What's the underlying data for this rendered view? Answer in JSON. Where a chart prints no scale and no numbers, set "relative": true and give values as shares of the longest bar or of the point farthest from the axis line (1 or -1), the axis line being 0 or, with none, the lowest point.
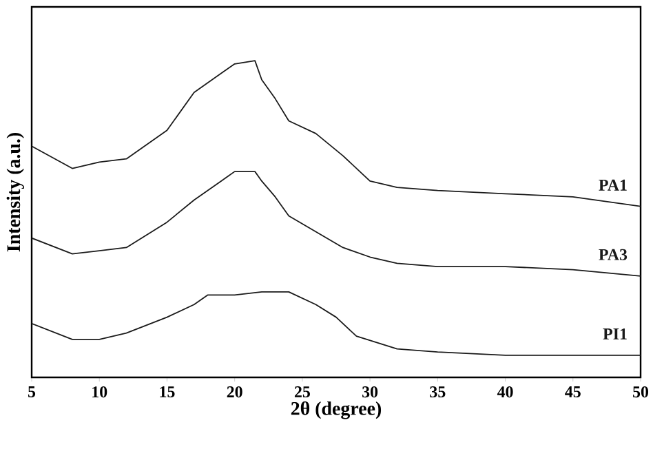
{
  "chart_data": {
    "type": "line",
    "xlabel": "2θ (degree)",
    "ylabel": "Intensity (a.u.)",
    "relative": true,
    "xlim": [
      5,
      50
    ],
    "xticks": [
      5,
      10,
      15,
      20,
      25,
      30,
      35,
      40,
      45,
      50
    ],
    "series": [
      {
        "name": "PA1",
        "color": "#1a1a1a",
        "x": [
          5,
          8,
          10,
          12,
          15,
          17,
          19,
          20,
          21.5,
          22,
          23,
          24,
          26,
          28,
          30,
          32,
          35,
          40,
          45,
          50
        ],
        "values": [
          0.73,
          0.66,
          0.68,
          0.69,
          0.78,
          0.9,
          0.96,
          0.99,
          1.0,
          0.94,
          0.88,
          0.81,
          0.77,
          0.7,
          0.62,
          0.6,
          0.59,
          0.58,
          0.57,
          0.54
        ]
      },
      {
        "name": "PA3",
        "color": "#1a1a1a",
        "x": [
          5,
          8,
          10,
          12,
          15,
          17,
          19,
          20,
          21.5,
          22,
          23,
          24,
          26,
          28,
          30,
          32,
          35,
          40,
          45,
          50
        ],
        "values": [
          0.44,
          0.39,
          0.4,
          0.41,
          0.49,
          0.56,
          0.62,
          0.65,
          0.65,
          0.62,
          0.57,
          0.51,
          0.46,
          0.41,
          0.38,
          0.36,
          0.35,
          0.35,
          0.34,
          0.32
        ]
      },
      {
        "name": "PI1",
        "color": "#1a1a1a",
        "x": [
          5,
          8,
          10,
          12,
          15,
          17,
          18,
          20,
          22,
          24,
          26,
          27.5,
          29,
          32,
          35,
          40,
          45,
          50
        ],
        "values": [
          0.17,
          0.12,
          0.12,
          0.14,
          0.19,
          0.23,
          0.26,
          0.26,
          0.27,
          0.27,
          0.23,
          0.19,
          0.13,
          0.09,
          0.08,
          0.07,
          0.07,
          0.07
        ]
      }
    ]
  }
}
